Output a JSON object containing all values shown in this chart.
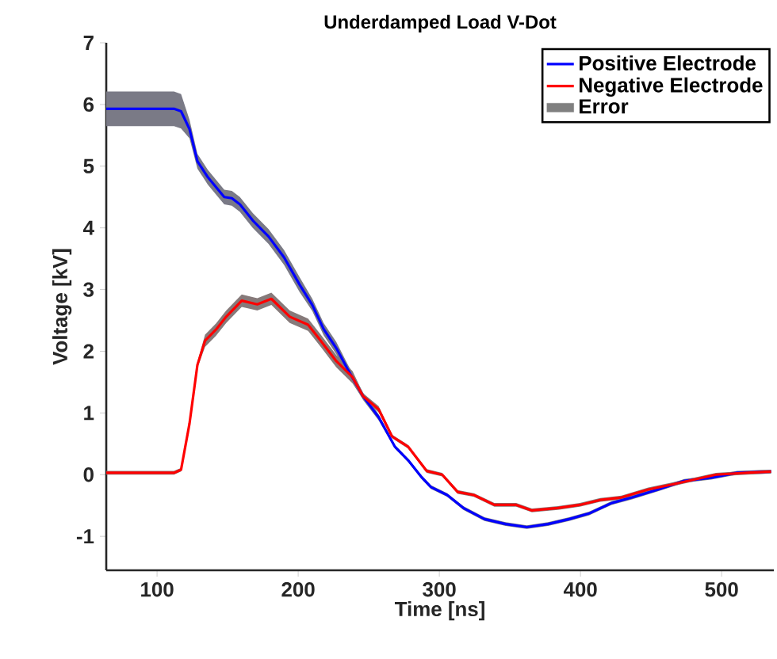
{
  "chart_data": {
    "type": "line",
    "title": "Underdamped Load V-Dot",
    "xlabel": "Time [ns]",
    "ylabel": "Voltage [kV]",
    "xlim": [
      64,
      537
    ],
    "ylim": [
      -1.55,
      7
    ],
    "xticks": [
      100,
      200,
      300,
      400,
      500
    ],
    "yticks": [
      -1,
      0,
      1,
      2,
      3,
      4,
      5,
      6,
      7
    ],
    "grid": false,
    "legend": "top right",
    "marker": "none",
    "line_style": "solid",
    "series": [
      {
        "name": "Positive Electrode",
        "color": "#0000ff",
        "x": [
          64,
          112,
          117,
          123,
          128.6,
          136,
          147.6,
          153,
          158.7,
          167.8,
          179,
          190,
          201,
          210,
          218,
          227,
          235,
          246,
          257,
          268.6,
          278,
          287,
          294,
          305.6,
          317,
          332,
          347,
          362,
          377,
          392,
          406,
          422,
          436.5,
          455,
          473.6,
          492.5,
          511,
          535
        ],
        "values": [
          5.93,
          5.93,
          5.89,
          5.6,
          5.08,
          4.82,
          4.5,
          4.48,
          4.38,
          4.12,
          3.86,
          3.52,
          3.08,
          2.75,
          2.36,
          2.05,
          1.71,
          1.27,
          0.93,
          0.45,
          0.23,
          -0.03,
          -0.2,
          -0.33,
          -0.54,
          -0.72,
          -0.8,
          -0.85,
          -0.8,
          -0.72,
          -0.63,
          -0.46,
          -0.37,
          -0.24,
          -0.1,
          -0.05,
          0.03,
          0.05
        ],
        "lower": [
          5.65,
          5.65,
          5.61,
          5.45,
          4.96,
          4.7,
          4.38,
          4.36,
          4.26,
          4.0,
          3.74,
          3.4,
          2.96,
          2.65,
          2.26,
          1.95,
          1.63,
          1.21,
          0.88,
          0.42,
          0.2,
          -0.06,
          -0.23,
          -0.36,
          -0.57,
          -0.75,
          -0.83,
          -0.88,
          -0.83,
          -0.75,
          -0.66,
          -0.49,
          -0.4,
          -0.27,
          -0.13,
          -0.08,
          0,
          0.02
        ],
        "upper": [
          6.21,
          6.21,
          6.17,
          5.75,
          5.2,
          4.94,
          4.62,
          4.6,
          4.5,
          4.24,
          3.98,
          3.64,
          3.2,
          2.85,
          2.46,
          2.15,
          1.79,
          1.33,
          0.98,
          0.48,
          0.26,
          0,
          -0.17,
          -0.3,
          -0.51,
          -0.69,
          -0.77,
          -0.82,
          -0.77,
          -0.69,
          -0.6,
          -0.43,
          -0.34,
          -0.21,
          -0.07,
          -0.02,
          0.06,
          0.08
        ]
      },
      {
        "name": "Negative Electrode",
        "color": "#ff0000",
        "x": [
          64,
          112,
          117,
          123,
          128.6,
          134,
          141.7,
          149,
          160,
          171,
          181,
          194,
          207,
          216,
          227,
          238.5,
          246,
          257,
          266.5,
          278,
          291,
          302,
          313,
          324.5,
          339,
          354.5,
          365.6,
          384,
          399.5,
          414,
          429,
          448,
          466.6,
          496,
          518,
          535
        ],
        "values": [
          0.03,
          0.03,
          0.08,
          0.83,
          1.78,
          2.17,
          2.35,
          2.56,
          2.82,
          2.76,
          2.85,
          2.56,
          2.43,
          2.17,
          1.84,
          1.58,
          1.27,
          1.06,
          0.62,
          0.45,
          0.06,
          0,
          -0.28,
          -0.33,
          -0.49,
          -0.49,
          -0.58,
          -0.54,
          -0.49,
          -0.41,
          -0.37,
          -0.24,
          -0.15,
          0,
          0.03,
          0.05
        ],
        "lower": [
          0,
          0,
          0.05,
          0.78,
          1.73,
          2.07,
          2.25,
          2.46,
          2.72,
          2.66,
          2.75,
          2.46,
          2.33,
          2.07,
          1.74,
          1.48,
          1.22,
          1.01,
          0.59,
          0.42,
          0.03,
          -0.03,
          -0.31,
          -0.36,
          -0.52,
          -0.52,
          -0.61,
          -0.57,
          -0.52,
          -0.44,
          -0.4,
          -0.27,
          -0.18,
          -0.03,
          0,
          0.02
        ],
        "upper": [
          0.06,
          0.06,
          0.11,
          0.88,
          1.83,
          2.27,
          2.45,
          2.66,
          2.92,
          2.86,
          2.95,
          2.66,
          2.53,
          2.27,
          1.94,
          1.68,
          1.32,
          1.11,
          0.65,
          0.48,
          0.09,
          0.03,
          -0.25,
          -0.3,
          -0.46,
          -0.46,
          -0.55,
          -0.51,
          -0.46,
          -0.38,
          -0.34,
          -0.21,
          -0.12,
          0.03,
          0.06,
          0.08
        ]
      },
      {
        "name": "Error",
        "color": "#808080",
        "type": "area"
      }
    ]
  }
}
